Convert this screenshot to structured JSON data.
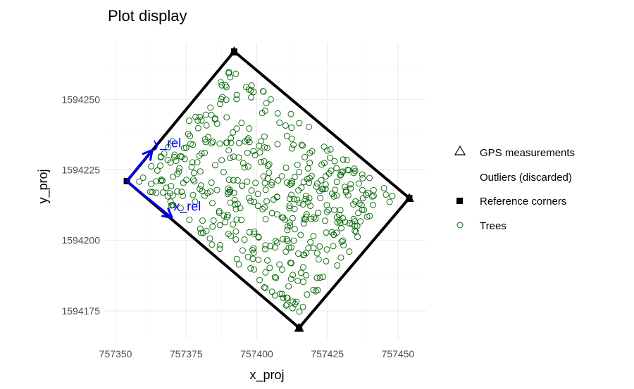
{
  "chart_data": {
    "type": "scatter",
    "title": "Plot display",
    "xlabel": "x_proj",
    "ylabel": "y_proj",
    "xlim": [
      757346,
      757460
    ],
    "ylim": [
      1594165,
      1594270
    ],
    "x_ticks": [
      757350,
      757375,
      757400,
      757425,
      757450
    ],
    "y_ticks": [
      1594175,
      1594200,
      1594225,
      1594250
    ],
    "x_tick_labels": [
      "757350",
      "757375",
      "757400",
      "757425",
      "757450"
    ],
    "y_tick_labels": [
      "1594175",
      "1594200",
      "1594225",
      "1594250"
    ],
    "grid": true,
    "legend_position": "right",
    "legend": [
      {
        "label": "GPS measurements",
        "symbol": "triangle-open"
      },
      {
        "label": "Outliers (discarded)",
        "symbol": "none"
      },
      {
        "label": "Reference corners",
        "symbol": "square-filled"
      },
      {
        "label": "Trees",
        "symbol": "circle-open",
        "color": "#006400"
      }
    ],
    "reference_corners": [
      {
        "x": 757354,
        "y": 1594221
      },
      {
        "x": 757392,
        "y": 1594267
      },
      {
        "x": 757454,
        "y": 1594215
      },
      {
        "x": 757415,
        "y": 1594169
      }
    ],
    "gps_measurements": [
      {
        "x": 757392,
        "y": 1594267
      },
      {
        "x": 757454,
        "y": 1594215
      },
      {
        "x": 757415,
        "y": 1594169
      }
    ],
    "axes_arrows": [
      {
        "label": "y_rel",
        "from": {
          "x": 757354,
          "y": 1594221
        },
        "to": {
          "x": 757363,
          "y": 1594232
        }
      },
      {
        "label": "x_rel",
        "from": {
          "x": 757354,
          "y": 1594221
        },
        "to": {
          "x": 757370,
          "y": 1594208
        }
      }
    ],
    "trees": {
      "count": 480,
      "seed": 7,
      "inset": 0.04
    }
  },
  "colors": {
    "tree": "#006400",
    "boundary": "#000000",
    "arrow": "#0000ff",
    "grid_major": "#ebebeb",
    "grid_minor": "#f3f3f3"
  }
}
